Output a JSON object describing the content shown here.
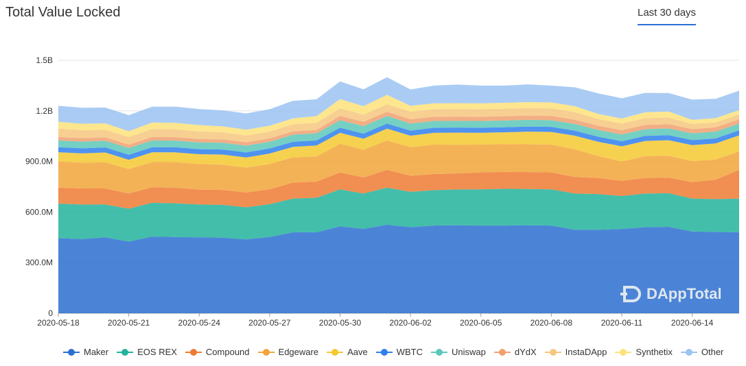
{
  "header": {
    "title": "Total Value Locked",
    "range_tab": "Last 30 days"
  },
  "watermark": {
    "text": "DAppTotal",
    "icon": "dapptotal-logo-icon"
  },
  "chart_data": {
    "type": "area",
    "stacked": true,
    "x": [
      "2020-05-18",
      "2020-05-19",
      "2020-05-20",
      "2020-05-21",
      "2020-05-22",
      "2020-05-23",
      "2020-05-24",
      "2020-05-25",
      "2020-05-26",
      "2020-05-27",
      "2020-05-28",
      "2020-05-29",
      "2020-05-30",
      "2020-05-31",
      "2020-06-01",
      "2020-06-02",
      "2020-06-03",
      "2020-06-04",
      "2020-06-05",
      "2020-06-06",
      "2020-06-07",
      "2020-06-08",
      "2020-06-09",
      "2020-06-10",
      "2020-06-11",
      "2020-06-12",
      "2020-06-13",
      "2020-06-14",
      "2020-06-15",
      "2020-06-16"
    ],
    "x_tick_labels": [
      "2020-05-18",
      "2020-05-21",
      "2020-05-24",
      "2020-05-27",
      "2020-05-30",
      "2020-06-02",
      "2020-06-05",
      "2020-06-08",
      "2020-06-11",
      "2020-06-14"
    ],
    "y_ticks": [
      "0",
      "300.0M",
      "600.0M",
      "900.0M",
      "1.2B",
      "1.5B"
    ],
    "y_tick_values": [
      0,
      300,
      600,
      900,
      1200,
      1500
    ],
    "ylim": [
      0,
      1500
    ],
    "unit": "M",
    "grid": true,
    "legend_position": "bottom",
    "series": [
      {
        "name": "Maker",
        "color": "#2b6fd0",
        "values": [
          445,
          440,
          450,
          425,
          455,
          452,
          450,
          448,
          438,
          452,
          480,
          480,
          515,
          500,
          525,
          510,
          520,
          522,
          520,
          520,
          522,
          520,
          495,
          495,
          500,
          510,
          512,
          485,
          482,
          480
        ]
      },
      {
        "name": "EOS REX",
        "color": "#22b39b",
        "values": [
          205,
          205,
          195,
          195,
          200,
          200,
          195,
          195,
          190,
          195,
          200,
          205,
          220,
          210,
          220,
          210,
          210,
          212,
          215,
          218,
          215,
          215,
          215,
          212,
          195,
          200,
          200,
          195,
          195,
          200
        ]
      },
      {
        "name": "Compound",
        "color": "#ee7a34",
        "values": [
          95,
          95,
          95,
          90,
          92,
          92,
          88,
          88,
          88,
          88,
          95,
          95,
          100,
          95,
          105,
          95,
          95,
          95,
          100,
          100,
          100,
          100,
          98,
          95,
          90,
          92,
          92,
          97,
          115,
          170
        ]
      },
      {
        "name": "Edgeware",
        "color": "#f2a43a",
        "values": [
          155,
          153,
          155,
          145,
          150,
          152,
          152,
          150,
          148,
          150,
          150,
          150,
          170,
          165,
          175,
          170,
          175,
          170,
          165,
          165,
          165,
          165,
          165,
          130,
          115,
          130,
          130,
          125,
          120,
          110
        ]
      },
      {
        "name": "Aave",
        "color": "#f5c931",
        "values": [
          55,
          55,
          58,
          55,
          58,
          58,
          58,
          60,
          60,
          62,
          62,
          65,
          65,
          65,
          70,
          68,
          70,
          72,
          70,
          70,
          75,
          75,
          80,
          85,
          90,
          90,
          92,
          95,
          95,
          95
        ]
      },
      {
        "name": "WBTC",
        "color": "#2f80ed",
        "values": [
          30,
          30,
          30,
          30,
          30,
          30,
          30,
          30,
          30,
          30,
          30,
          30,
          30,
          30,
          30,
          30,
          30,
          30,
          30,
          30,
          30,
          30,
          30,
          30,
          30,
          30,
          30,
          30,
          30,
          30
        ]
      },
      {
        "name": "Uniswap",
        "color": "#5cc8b8",
        "values": [
          40,
          40,
          40,
          40,
          40,
          40,
          40,
          40,
          40,
          40,
          42,
          42,
          45,
          45,
          45,
          42,
          40,
          40,
          40,
          40,
          40,
          40,
          40,
          40,
          40,
          40,
          40,
          40,
          40,
          40
        ]
      },
      {
        "name": "dYdX",
        "color": "#f0a070",
        "values": [
          20,
          20,
          20,
          20,
          20,
          20,
          20,
          20,
          20,
          20,
          20,
          20,
          25,
          25,
          25,
          25,
          25,
          25,
          25,
          25,
          25,
          25,
          25,
          25,
          25,
          25,
          25,
          25,
          25,
          25
        ]
      },
      {
        "name": "InstaDApp",
        "color": "#f6c77f",
        "values": [
          50,
          48,
          45,
          45,
          48,
          47,
          45,
          42,
          40,
          40,
          42,
          42,
          45,
          43,
          45,
          45,
          45,
          45,
          45,
          45,
          45,
          45,
          45,
          40,
          40,
          40,
          40,
          30,
          30,
          30
        ]
      },
      {
        "name": "Synthetix",
        "color": "#fde27a",
        "values": [
          40,
          38,
          38,
          35,
          38,
          38,
          38,
          35,
          35,
          35,
          35,
          40,
          55,
          50,
          55,
          35,
          35,
          35,
          35,
          35,
          35,
          35,
          35,
          30,
          30,
          35,
          35,
          25,
          25,
          25
        ]
      },
      {
        "name": "Other",
        "color": "#9bc3f2",
        "values": [
          95,
          95,
          94,
          95,
          94,
          96,
          95,
          95,
          96,
          98,
          104,
          100,
          105,
          100,
          105,
          97,
          105,
          110,
          105,
          102,
          105,
          100,
          112,
          122,
          120,
          115,
          110,
          120,
          115,
          115
        ]
      }
    ]
  }
}
